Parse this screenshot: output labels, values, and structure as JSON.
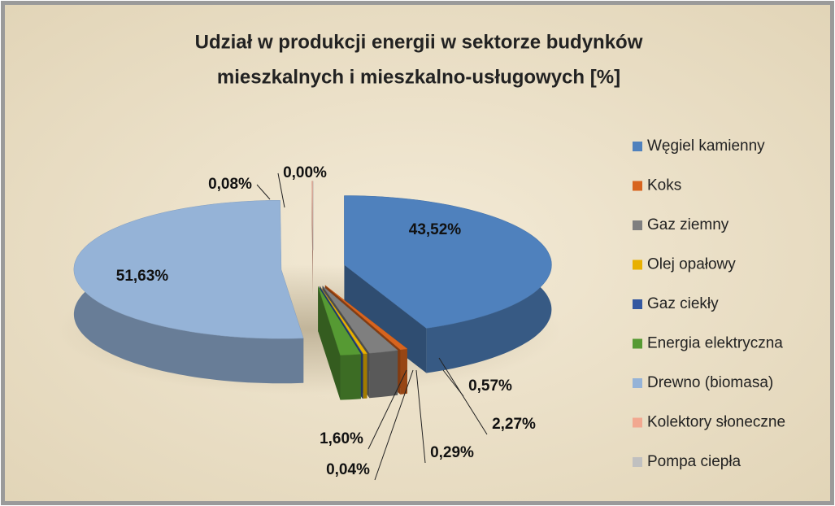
{
  "chart_data": {
    "type": "pie",
    "title": [
      "Udział w produkcji energii w sektorze budynków",
      "mieszkalnych i mieszkalno-usługowych [%]"
    ],
    "categories": [
      "Węgiel kamienny",
      "Koks",
      "Gaz ziemny",
      "Olej opałowy",
      "Gaz ciekły",
      "Energia elektryczna",
      "Drewno (biomasa)",
      "Kolektory słoneczne",
      "Pompa ciepła"
    ],
    "values": [
      43.52,
      0.57,
      2.27,
      0.29,
      0.04,
      1.6,
      51.63,
      0.08,
      0.0
    ],
    "value_labels": [
      "43,52%",
      "0,57%",
      "2,27%",
      "0,29%",
      "0,04%",
      "1,60%",
      "51,63%",
      "0,08%",
      "0,00%"
    ],
    "colors": [
      "#4f81bd",
      "#d8641e",
      "#7f7f7f",
      "#e8b000",
      "#3458a0",
      "#569a33",
      "#95b3d7",
      "#f2a890",
      "#c0c0c0"
    ],
    "legend": "right"
  }
}
